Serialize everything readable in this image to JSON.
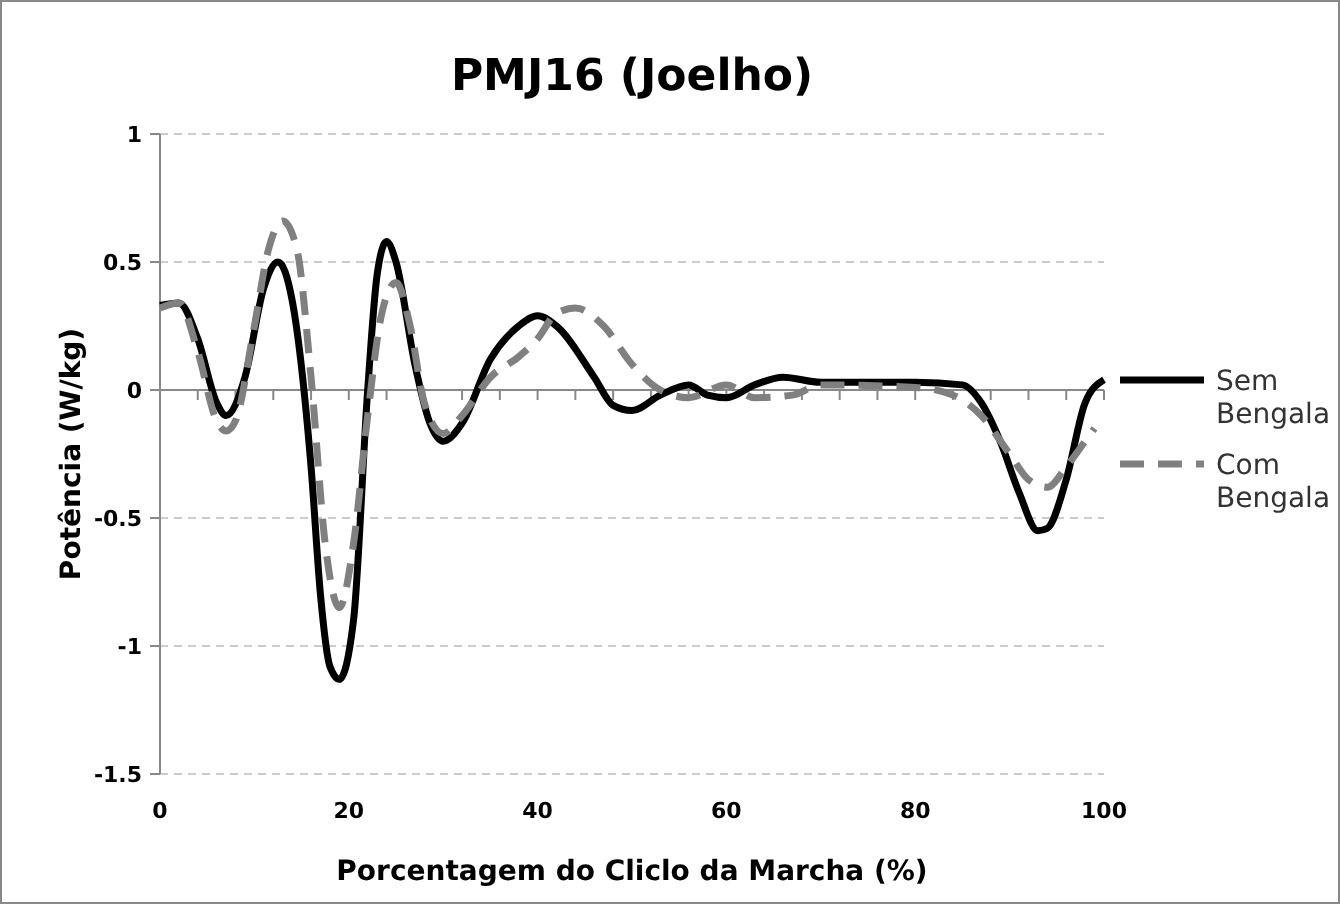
{
  "chart_data": {
    "type": "line",
    "title": "PMJ16  (Joelho)",
    "xlabel": "Porcentagem do Cliclo da Marcha (%)",
    "ylabel": "Potência (W/kg)",
    "xlim": [
      0,
      100
    ],
    "ylim": [
      -1.5,
      1
    ],
    "xticks": [
      0,
      {
        "value": 4,
        "label": null
      },
      {
        "value": 8,
        "label": null
      },
      {
        "value": 12,
        "label": null
      },
      {
        "value": 16,
        "label": null
      },
      20,
      {
        "value": 24,
        "label": null
      },
      {
        "value": 28,
        "label": null
      },
      {
        "value": 32,
        "label": null
      },
      {
        "value": 36,
        "label": null
      },
      40,
      {
        "value": 44,
        "label": null
      },
      {
        "value": 48,
        "label": null
      },
      {
        "value": 52,
        "label": null
      },
      {
        "value": 56,
        "label": null
      },
      60,
      {
        "value": 64,
        "label": null
      },
      {
        "value": 68,
        "label": null
      },
      {
        "value": 72,
        "label": null
      },
      {
        "value": 76,
        "label": null
      },
      80,
      {
        "value": 84,
        "label": null
      },
      {
        "value": 88,
        "label": null
      },
      {
        "value": 92,
        "label": null
      },
      {
        "value": 96,
        "label": null
      },
      100
    ],
    "yticks": [
      -1.5,
      -1,
      -0.5,
      0,
      0.5,
      1
    ],
    "grid": "y",
    "legend": "right",
    "marker": "none",
    "series": [
      {
        "name": "Sem Bengala",
        "color": "#000000",
        "line_style": "solid",
        "x": [
          0,
          2,
          4,
          6,
          7,
          9,
          11,
          12.5,
          14,
          16,
          17,
          18,
          19,
          20.5,
          22,
          23,
          24,
          25,
          27,
          28.5,
          30,
          32,
          35,
          38,
          40,
          42,
          46,
          48,
          50,
          53,
          56,
          58,
          60,
          63,
          66,
          70,
          75,
          80,
          85,
          87,
          89,
          91,
          93,
          94,
          96,
          98,
          100
        ],
        "values": [
          0.33,
          0.34,
          0.2,
          -0.05,
          -0.1,
          0.05,
          0.4,
          0.5,
          0.35,
          -0.3,
          -0.8,
          -1.08,
          -1.13,
          -0.9,
          0,
          0.45,
          0.58,
          0.5,
          0.1,
          -0.12,
          -0.2,
          -0.13,
          0.12,
          0.25,
          0.29,
          0.25,
          0.05,
          -0.06,
          -0.08,
          -0.02,
          0.02,
          -0.02,
          -0.03,
          0.02,
          0.05,
          0.03,
          0.03,
          0.03,
          0.02,
          -0.05,
          -0.2,
          -0.4,
          -0.55,
          -0.54,
          -0.35,
          -0.05,
          0.04
        ]
      },
      {
        "name": "Com Bengala",
        "color": "#808080",
        "line_style": "dashed",
        "x": [
          0,
          2,
          4,
          6,
          7,
          8,
          10,
          11.5,
          13,
          14.5,
          16,
          17.5,
          19,
          20.5,
          22,
          23.5,
          25,
          26.5,
          28,
          30,
          32,
          35,
          38,
          40,
          42,
          44,
          47,
          50,
          53,
          56,
          60,
          63,
          67,
          70,
          80,
          84,
          87,
          90,
          92,
          94,
          96,
          98,
          99
        ],
        "values": [
          0.32,
          0.34,
          0.15,
          -0.12,
          -0.16,
          -0.12,
          0.25,
          0.55,
          0.66,
          0.55,
          0.05,
          -0.6,
          -0.85,
          -0.6,
          -0.1,
          0.3,
          0.42,
          0.25,
          -0.05,
          -0.17,
          -0.1,
          0.05,
          0.13,
          0.2,
          0.3,
          0.32,
          0.25,
          0.1,
          0,
          -0.03,
          0.02,
          -0.03,
          -0.02,
          0.02,
          0.01,
          -0.02,
          -0.1,
          -0.25,
          -0.35,
          -0.38,
          -0.3,
          -0.2,
          -0.15
        ]
      }
    ]
  }
}
